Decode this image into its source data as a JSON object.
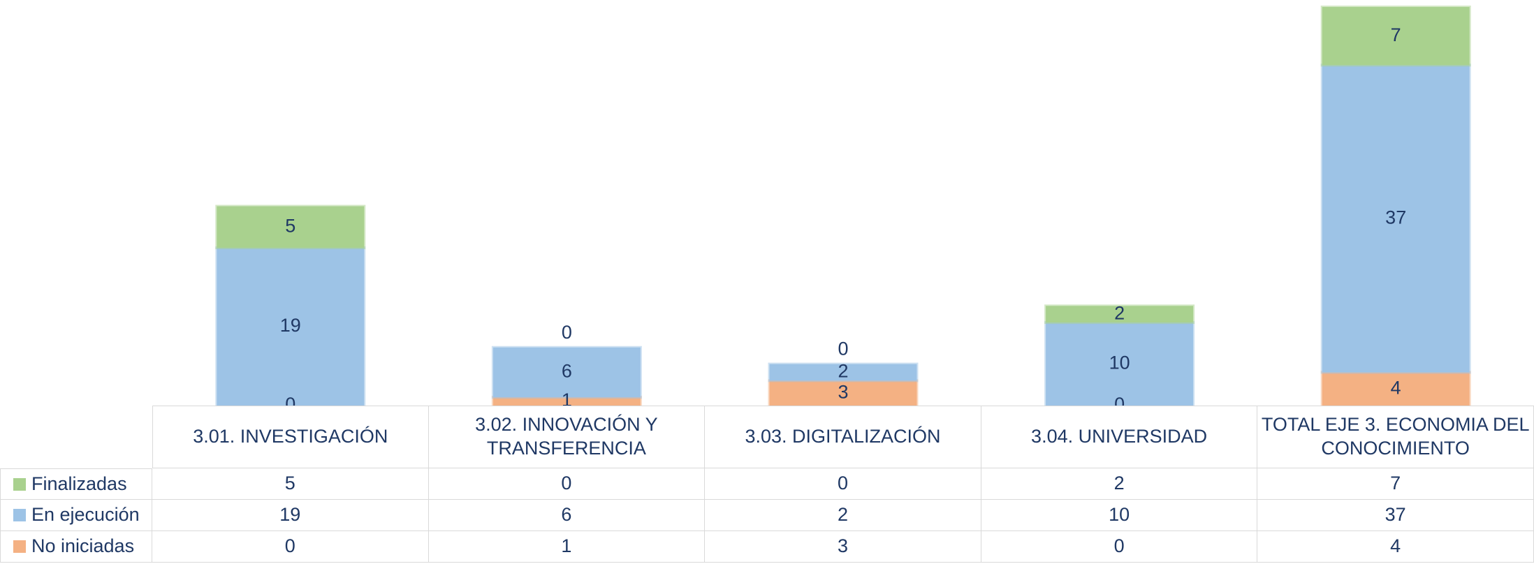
{
  "chart_data": {
    "type": "bar",
    "stacked": true,
    "categories": [
      "3.01. INVESTIGACIÓN",
      "3.02. INNOVACIÓN Y TRANSFERENCIA",
      "3.03. DIGITALIZACIÓN",
      "3.04. UNIVERSIDAD",
      "TOTAL EJE  3. ECONOMIA DEL CONOCIMIENTO"
    ],
    "series": [
      {
        "name": "Finalizadas",
        "color": "#a9d18e",
        "values": [
          5,
          0,
          0,
          2,
          7
        ]
      },
      {
        "name": "En ejecución",
        "color": "#9dc3e6",
        "values": [
          19,
          6,
          2,
          10,
          37
        ]
      },
      {
        "name": "No iniciadas",
        "color": "#f4b183",
        "values": [
          0,
          1,
          3,
          0,
          4
        ]
      }
    ]
  }
}
